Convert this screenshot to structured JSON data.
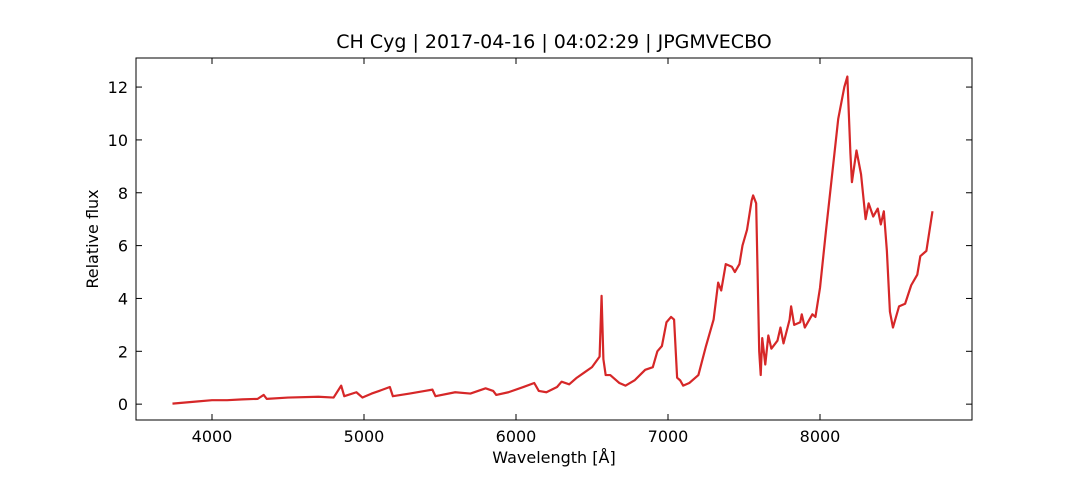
{
  "chart_data": {
    "type": "line",
    "title": "CH Cyg | 2017-04-16 | 04:02:29 | JPGMVECBO",
    "xlabel": "Wavelength [Å]",
    "ylabel": "Relative flux",
    "color": "#d62728",
    "xlim": [
      3500,
      9000
    ],
    "ylim": [
      -0.6,
      13.1
    ],
    "xticks": [
      4000,
      5000,
      6000,
      7000,
      8000
    ],
    "yticks": [
      0,
      2,
      4,
      6,
      8,
      10,
      12
    ],
    "x": [
      3740,
      3900,
      4000,
      4100,
      4200,
      4300,
      4340,
      4360,
      4500,
      4700,
      4800,
      4850,
      4870,
      4950,
      4990,
      5050,
      5100,
      5170,
      5190,
      5300,
      5400,
      5450,
      5470,
      5600,
      5700,
      5800,
      5850,
      5870,
      5950,
      6050,
      6120,
      6150,
      6200,
      6270,
      6300,
      6350,
      6400,
      6450,
      6500,
      6550,
      6563,
      6575,
      6590,
      6620,
      6680,
      6720,
      6780,
      6850,
      6900,
      6930,
      6960,
      6990,
      7020,
      7040,
      7060,
      7080,
      7100,
      7140,
      7200,
      7250,
      7300,
      7330,
      7350,
      7380,
      7420,
      7440,
      7470,
      7490,
      7520,
      7550,
      7560,
      7580,
      7600,
      7610,
      7620,
      7640,
      7660,
      7680,
      7720,
      7740,
      7760,
      7800,
      7810,
      7830,
      7870,
      7880,
      7900,
      7950,
      7970,
      8000,
      8040,
      8080,
      8120,
      8160,
      8180,
      8200,
      8210,
      8240,
      8270,
      8300,
      8320,
      8350,
      8380,
      8400,
      8420,
      8440,
      8460,
      8480,
      8520,
      8560,
      8600,
      8640,
      8660,
      8700,
      8740
    ],
    "values": [
      0.02,
      0.1,
      0.15,
      0.15,
      0.18,
      0.2,
      0.35,
      0.2,
      0.25,
      0.28,
      0.25,
      0.7,
      0.3,
      0.45,
      0.25,
      0.4,
      0.5,
      0.65,
      0.3,
      0.4,
      0.5,
      0.55,
      0.3,
      0.45,
      0.4,
      0.6,
      0.5,
      0.35,
      0.45,
      0.65,
      0.8,
      0.5,
      0.45,
      0.65,
      0.85,
      0.75,
      1.0,
      1.2,
      1.4,
      1.8,
      4.1,
      1.7,
      1.1,
      1.1,
      0.8,
      0.7,
      0.9,
      1.3,
      1.4,
      2.0,
      2.2,
      3.1,
      3.3,
      3.2,
      1.0,
      0.9,
      0.7,
      0.8,
      1.1,
      2.2,
      3.2,
      4.6,
      4.3,
      5.3,
      5.2,
      5.0,
      5.3,
      6.0,
      6.6,
      7.7,
      7.9,
      7.6,
      2.0,
      1.1,
      2.5,
      1.5,
      2.6,
      2.1,
      2.4,
      2.9,
      2.3,
      3.2,
      3.7,
      3.0,
      3.1,
      3.4,
      2.9,
      3.4,
      3.3,
      4.4,
      6.6,
      8.7,
      10.8,
      12.0,
      12.4,
      9.5,
      8.4,
      9.6,
      8.7,
      7.0,
      7.6,
      7.1,
      7.4,
      6.8,
      7.3,
      5.8,
      3.5,
      2.9,
      3.7,
      3.8,
      4.5,
      4.9,
      5.6,
      5.8,
      7.3
    ]
  }
}
